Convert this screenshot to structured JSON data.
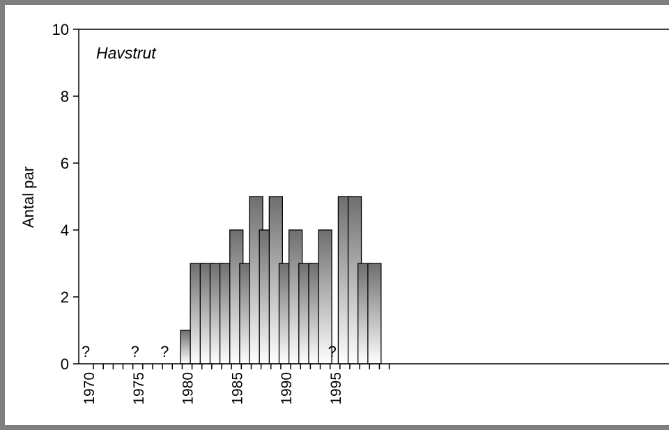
{
  "chart_data": {
    "type": "bar",
    "title": "Havstrut",
    "ylabel": "Antal par",
    "xlabel": "",
    "ylim": [
      0,
      10
    ],
    "yticks": [
      0,
      2,
      4,
      6,
      8,
      10
    ],
    "xlim": [
      1970,
      1999
    ],
    "xtick_labels": [
      1970,
      1975,
      1980,
      1985,
      1990,
      1995
    ],
    "years": [
      1980,
      1981,
      1982,
      1983,
      1984,
      1985,
      1986,
      1987,
      1988,
      1989,
      1990,
      1991,
      1992,
      1993,
      1994,
      1996,
      1997,
      1998,
      1999
    ],
    "values": [
      1,
      3,
      3,
      3,
      3,
      4,
      3,
      5,
      4,
      5,
      3,
      4,
      3,
      3,
      4,
      5,
      5,
      3,
      3
    ],
    "unknown_years": [
      1970,
      1975,
      1978,
      1995
    ],
    "unknown_marker": "?",
    "bar_color_top": "#6e6e6e",
    "bar_color_bottom": "#ffffff",
    "grid": false,
    "legend": "none"
  }
}
